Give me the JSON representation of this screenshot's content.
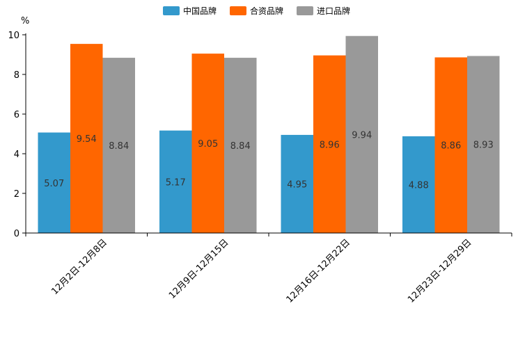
{
  "chart_data": {
    "type": "bar",
    "title": "",
    "xlabel": "",
    "ylabel": "%",
    "ylim": [
      0,
      10
    ],
    "yticks": [
      0,
      2,
      4,
      6,
      8,
      10
    ],
    "grid": false,
    "legend_position": "top-center",
    "categories": [
      "12月2日-12月8日",
      "12月9日-12月15日",
      "12月16日-12月22日",
      "12月23日-12月29日"
    ],
    "series": [
      {
        "name": "中国品牌",
        "color": "#3399cc",
        "values": [
          5.07,
          5.17,
          4.95,
          4.88
        ],
        "labels": [
          "5.07",
          "5.17",
          "4.95",
          "4.88"
        ]
      },
      {
        "name": "合资品牌",
        "color": "#ff6600",
        "values": [
          9.54,
          9.05,
          8.96,
          8.86
        ],
        "labels": [
          "9.54",
          "9.05",
          "8.96",
          "8.86"
        ]
      },
      {
        "name": "进口品牌",
        "color": "#999999",
        "values": [
          8.84,
          8.84,
          9.94,
          8.93
        ],
        "labels": [
          "8.84",
          "8.84",
          "9.94",
          "8.93"
        ]
      }
    ]
  }
}
